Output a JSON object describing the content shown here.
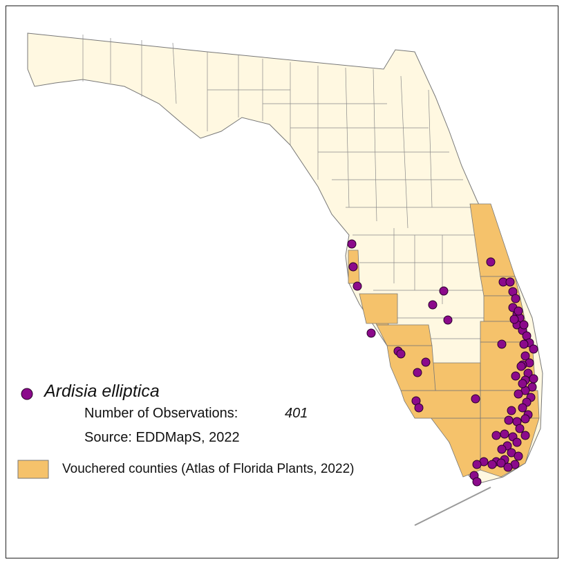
{
  "colors": {
    "county_fill": "#FFF8E1",
    "vouchered_fill": "#F5C26B",
    "county_stroke": "#777777",
    "point_fill": "#8B0A8B",
    "point_stroke": "#2a002a"
  },
  "legend": {
    "species": "Ardisia elliptica",
    "observations_label": "Number of Observations:",
    "observations_value": "401",
    "source": "Source: EDDMapS, 2022",
    "vouchered_label": "Vouchered counties (Atlas of Florida Plants, 2022)"
  },
  "map": {
    "region": "Florida",
    "vouchered_counties": [
      "Pinellas",
      "Manatee",
      "Sarasota",
      "Charlotte",
      "Lee",
      "Collier",
      "Hendry",
      "Monroe",
      "Miami-Dade",
      "Broward",
      "Palm Beach",
      "Martin",
      "St. Lucie",
      "Indian River",
      "Brevard"
    ]
  }
}
